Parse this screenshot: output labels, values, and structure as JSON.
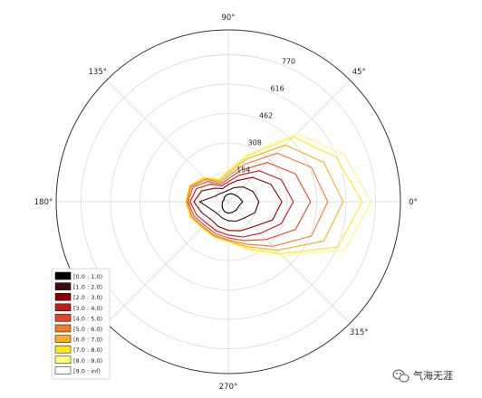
{
  "chart_data": {
    "type": "polar-line",
    "angle_ticks": [
      {
        "deg": 0,
        "label": "0°"
      },
      {
        "deg": 45,
        "label": "45°"
      },
      {
        "deg": 90,
        "label": "90°"
      },
      {
        "deg": 135,
        "label": "135°"
      },
      {
        "deg": 180,
        "label": "180°"
      },
      {
        "deg": 270,
        "label": "270°"
      },
      {
        "deg": 315,
        "label": "315°"
      }
    ],
    "radial_ticks": [
      154,
      308,
      462,
      616,
      770
    ],
    "rmax": 900,
    "directions_deg": [
      0,
      22.5,
      45,
      67.5,
      90,
      112.5,
      135,
      157.5,
      180,
      202.5,
      225,
      247.5,
      270,
      292.5,
      315,
      337.5
    ],
    "series": [
      {
        "name": "[0.0 : 1.0)",
        "color": "#000000",
        "values": [
          75,
          60,
          50,
          45,
          40,
          35,
          30,
          25,
          30,
          35,
          45,
          55,
          60,
          60,
          60,
          60
        ]
      },
      {
        "name": "[1.0 : 2.0)",
        "color": "#3d0a0a",
        "values": [
          160,
          140,
          110,
          80,
          60,
          55,
          60,
          75,
          150,
          100,
          85,
          90,
          100,
          110,
          120,
          150
        ]
      },
      {
        "name": "[2.0 : 3.0)",
        "color": "#8b0000",
        "values": [
          280,
          240,
          180,
          120,
          90,
          75,
          100,
          150,
          180,
          150,
          130,
          140,
          150,
          165,
          185,
          250
        ]
      },
      {
        "name": "[3.0 : 4.0)",
        "color": "#c41a1a",
        "values": [
          340,
          300,
          230,
          150,
          105,
          90,
          130,
          180,
          200,
          180,
          160,
          165,
          175,
          200,
          235,
          300
        ]
      },
      {
        "name": "[4.0 : 5.0)",
        "color": "#e8442a",
        "values": [
          430,
          380,
          290,
          180,
          120,
          100,
          150,
          200,
          210,
          195,
          175,
          180,
          190,
          220,
          280,
          380
        ]
      },
      {
        "name": "[5.0 : 6.0)",
        "color": "#f4792a",
        "values": [
          520,
          470,
          360,
          210,
          135,
          110,
          165,
          210,
          215,
          205,
          185,
          190,
          200,
          240,
          330,
          470
        ]
      },
      {
        "name": "[6.0 : 7.0)",
        "color": "#f6b01a",
        "values": [
          600,
          540,
          420,
          240,
          150,
          118,
          172,
          215,
          220,
          210,
          190,
          195,
          205,
          255,
          360,
          540
        ]
      },
      {
        "name": "[7.0 : 8.0)",
        "color": "#ffe81a",
        "values": [
          700,
          610,
          480,
          260,
          160,
          125,
          178,
          218,
          222,
          213,
          193,
          198,
          208,
          265,
          385,
          620
        ]
      },
      {
        "name": "[8.0 : 9.0)",
        "color": "#ffff80",
        "values": [
          745,
          650,
          505,
          272,
          165,
          128,
          181,
          220,
          224,
          215,
          195,
          200,
          210,
          270,
          400,
          660
        ]
      },
      {
        "name": "[9.0 : inf)",
        "color": "#ffffff",
        "values": [
          750,
          655,
          508,
          274,
          166,
          129,
          182,
          221,
          225,
          216,
          196,
          201,
          211,
          272,
          402,
          662
        ]
      }
    ],
    "legend_position": "lower-left",
    "grid": true
  },
  "watermark": {
    "icon": "wechat-icon",
    "text": "气海无涯"
  }
}
